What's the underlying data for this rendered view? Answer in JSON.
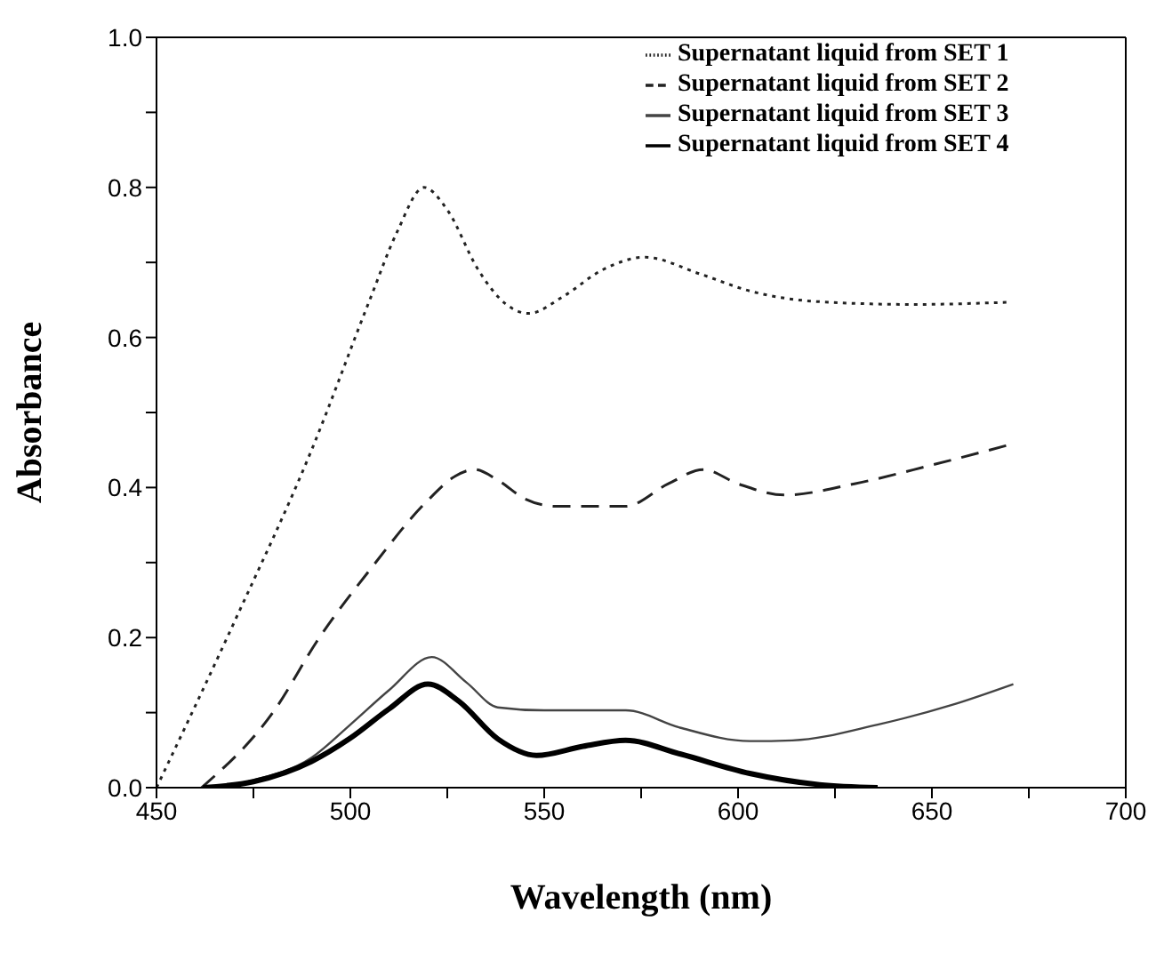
{
  "chart_data": {
    "type": "line",
    "xlabel": "Wavelength (nm)",
    "ylabel": "Absorbance",
    "xlim": [
      450,
      700
    ],
    "ylim": [
      0,
      1
    ],
    "xticks": [
      450,
      {
        "value": 475,
        "label": null
      },
      500,
      {
        "value": 525,
        "label": null
      },
      550,
      {
        "value": 575,
        "label": null
      },
      600,
      {
        "value": 625,
        "label": null
      },
      650,
      {
        "value": 675,
        "label": null
      },
      700
    ],
    "yticks": [
      "0.0",
      {
        "value": 0.1,
        "label": null
      },
      {
        "value": 0.2,
        "label": "0.2"
      },
      {
        "value": 0.3,
        "label": null
      },
      {
        "value": 0.4,
        "label": "0.4"
      },
      {
        "value": 0.5,
        "label": null
      },
      {
        "value": 0.6,
        "label": "0.6"
      },
      {
        "value": 0.7,
        "label": null
      },
      {
        "value": 0.8,
        "label": "0.8"
      },
      {
        "value": 0.9,
        "label": null
      },
      {
        "value": 1,
        "label": "1.0"
      }
    ],
    "grid": false,
    "legend": "top right",
    "marker": "none",
    "series": [
      {
        "name": "Supernatant liquid from SET 1",
        "color": "#222222",
        "line_style": "dotted",
        "x": [
          450,
          470,
          490,
          505,
          512,
          519,
          525,
          533,
          540,
          546,
          555,
          565,
          576,
          590,
          603,
          620,
          645,
          670
        ],
        "values": [
          0,
          0.22,
          0.45,
          0.65,
          0.74,
          0.8,
          0.77,
          0.69,
          0.645,
          0.632,
          0.655,
          0.69,
          0.707,
          0.685,
          0.662,
          0.648,
          0.644,
          0.647
        ]
      },
      {
        "name": "Supernatant liquid from SET 2",
        "color": "#222222",
        "line_style": "dashed",
        "x": [
          461.6,
          480,
          492,
          505,
          520,
          527,
          532,
          538,
          545,
          553,
          571,
          582,
          591,
          600,
          612,
          630,
          650,
          670
        ],
        "values": [
          0,
          0.1,
          0.2,
          0.29,
          0.383,
          0.415,
          0.424,
          0.41,
          0.385,
          0.375,
          0.375,
          0.405,
          0.424,
          0.405,
          0.39,
          0.405,
          0.43,
          0.457
        ]
      },
      {
        "name": "Supernatant liquid from SET 3",
        "color": "#444444",
        "line_style": "solid",
        "x": [
          462,
          475,
          490,
          500,
          510,
          521,
          530,
          538,
          550,
          571,
          585,
          603,
          614,
          636,
          655,
          671
        ],
        "values": [
          0,
          0.01,
          0.04,
          0.084,
          0.13,
          0.174,
          0.14,
          0.107,
          0.103,
          0.103,
          0.08,
          0.062,
          0.063,
          0.084,
          0.11,
          0.138
        ]
      },
      {
        "name": "Supernatant liquid from SET 4",
        "color": "#000000",
        "line_style": "solid",
        "x": [
          462,
          475,
          490,
          500,
          510,
          520,
          528,
          538,
          548,
          560,
          571,
          585,
          603,
          621,
          636
        ],
        "values": [
          0,
          0.008,
          0.035,
          0.066,
          0.105,
          0.138,
          0.115,
          0.065,
          0.043,
          0.055,
          0.063,
          0.045,
          0.019,
          0.004,
          0
        ]
      }
    ]
  }
}
